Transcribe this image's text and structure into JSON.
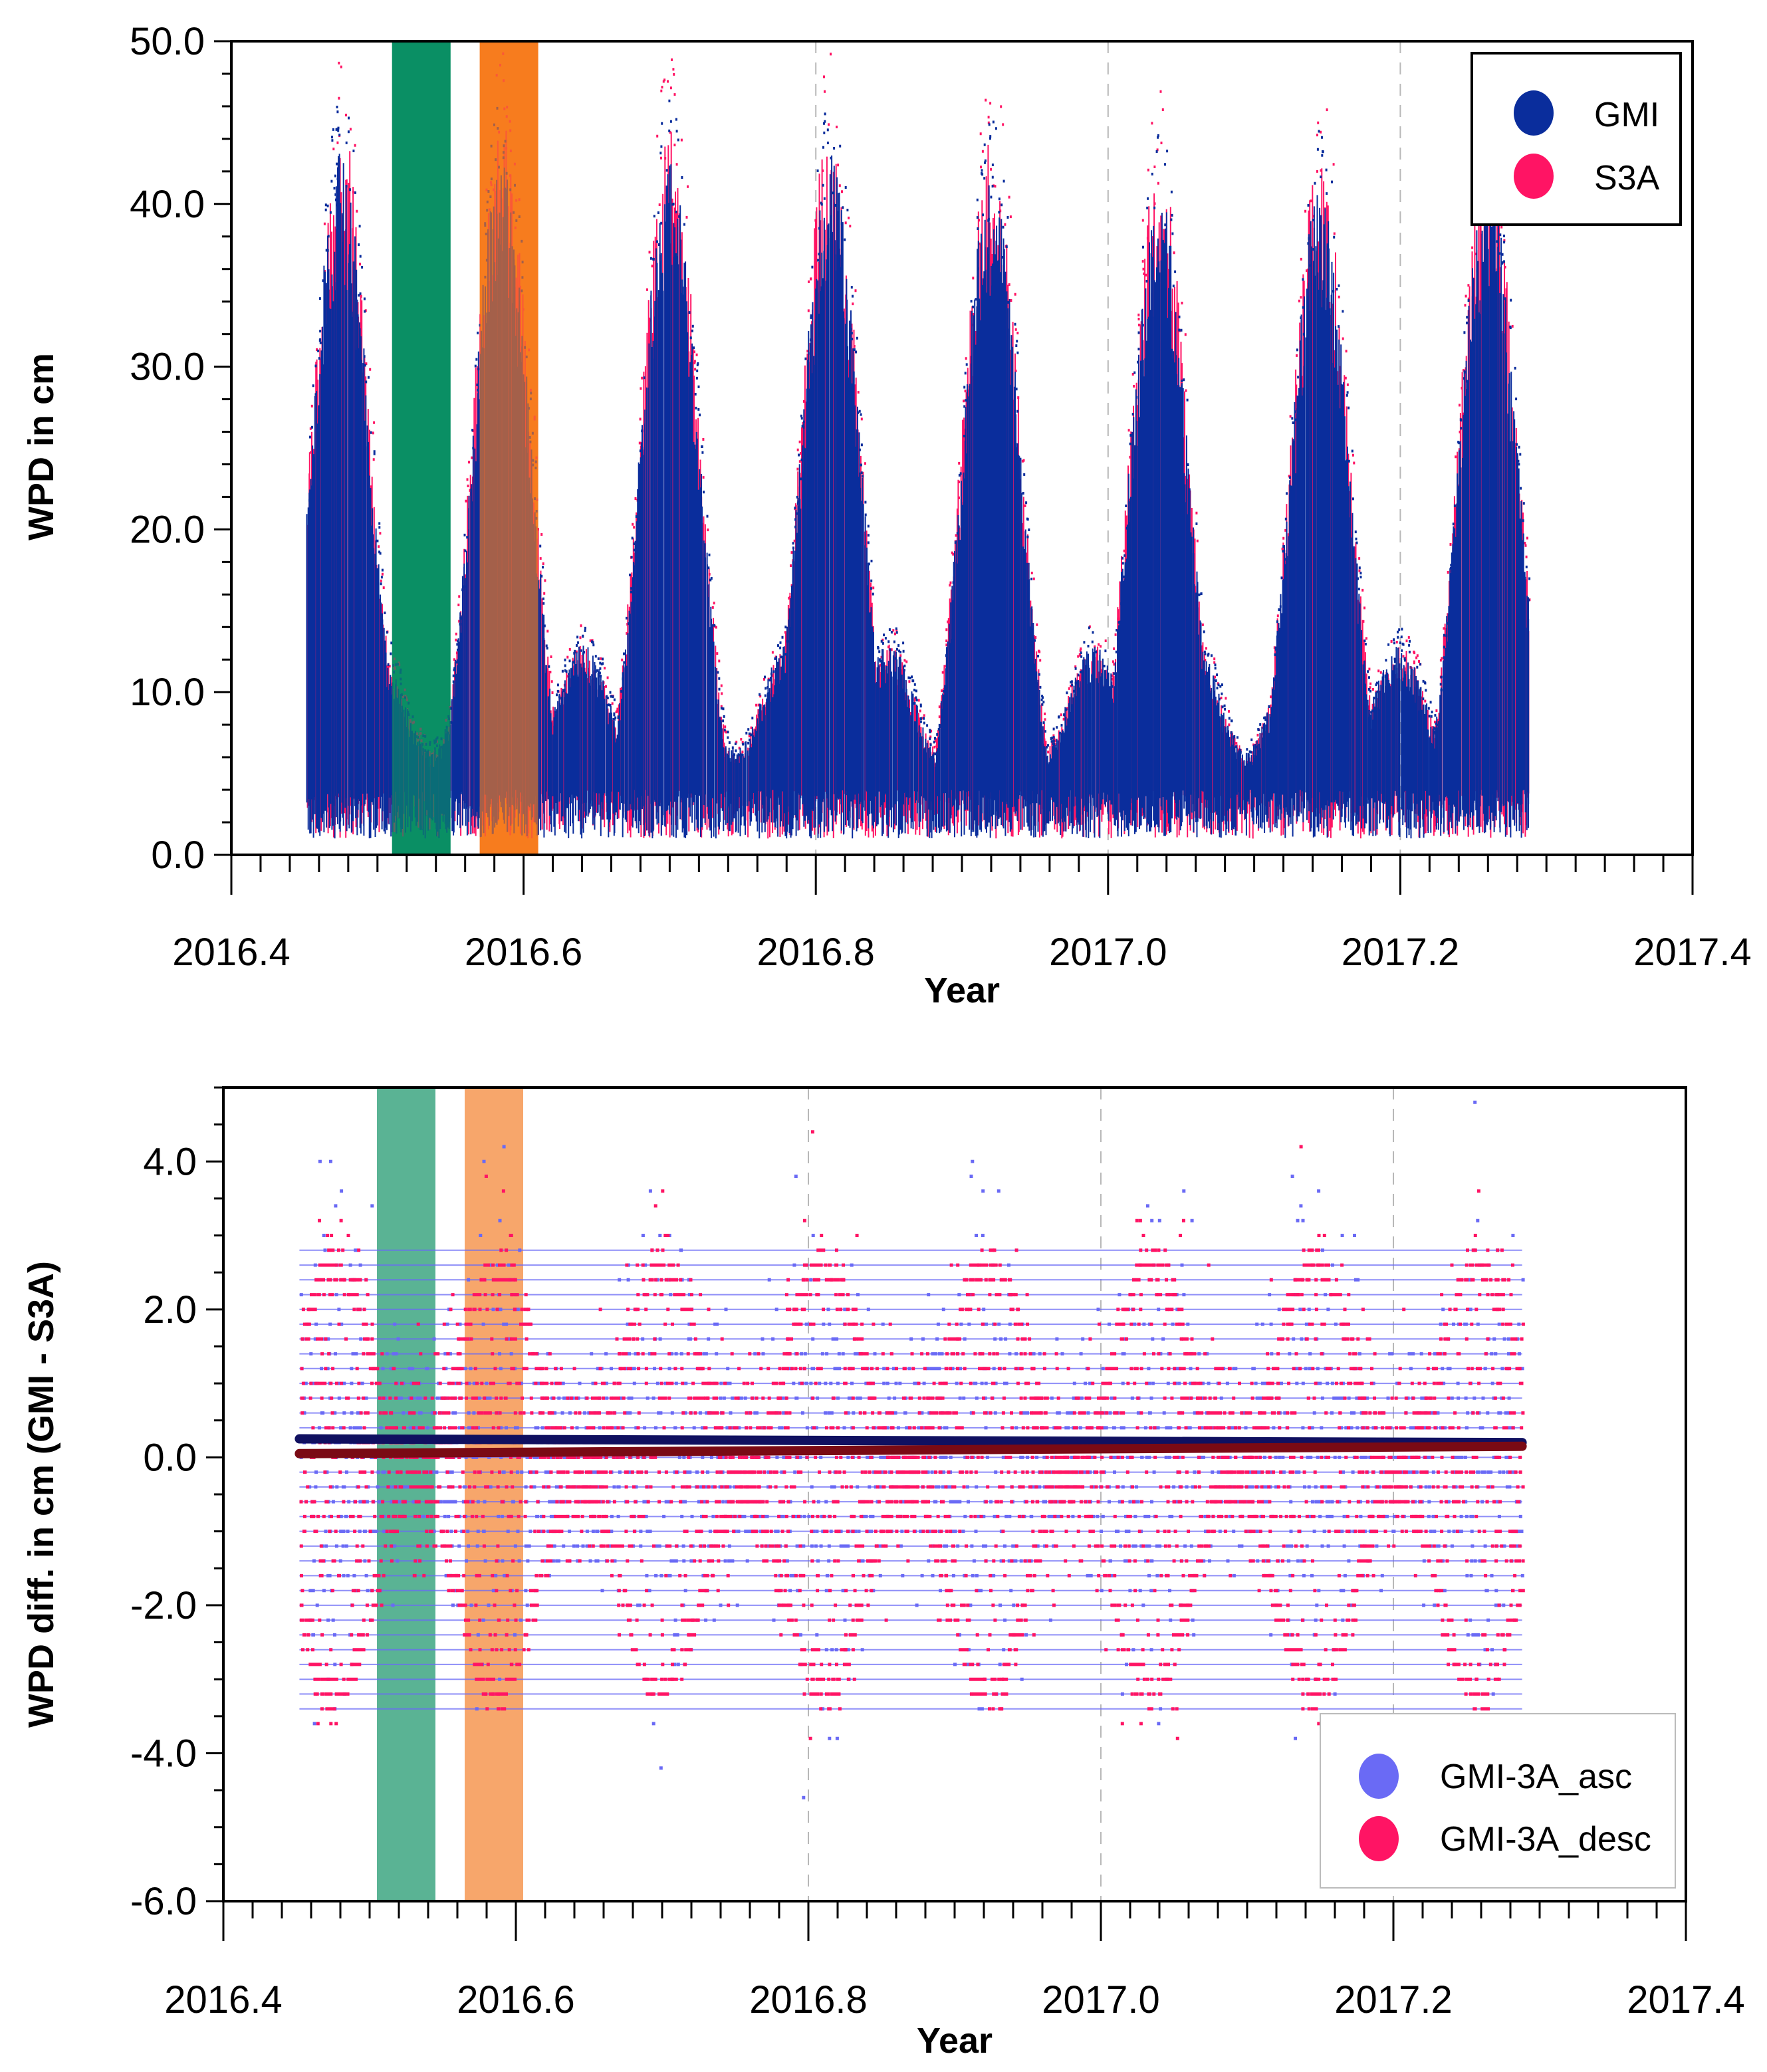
{
  "colors": {
    "gmi": "#0a2d9c",
    "s3a": "#ff1464",
    "asc": "#6a6af5",
    "desc": "#ff1464",
    "band_green": "#0a8f64",
    "band_orange": "#f77d1e",
    "band_green_light": "#5ab394",
    "band_orange_light": "#f7a66b",
    "mean_asc": "#101060",
    "mean_desc": "#7a0a14",
    "grid": "#b8b8b8"
  },
  "chart_data": [
    {
      "type": "scatter",
      "title": "",
      "xlabel": "Year",
      "ylabel": "WPD in cm",
      "xlim": [
        2016.4,
        2017.4
      ],
      "ylim": [
        0.0,
        50.0
      ],
      "x_ticks": [
        "2016.4",
        "2016.6",
        "2016.8",
        "2017.0",
        "2017.2",
        "2017.4"
      ],
      "y_ticks": [
        "0.0",
        "10.0",
        "20.0",
        "30.0",
        "40.0",
        "50.0"
      ],
      "x_range_data": [
        2016.452,
        2017.288
      ],
      "shaded_periods": [
        {
          "color": "green",
          "x": [
            2016.51,
            2016.55
          ]
        },
        {
          "color": "orange",
          "x": [
            2016.57,
            2016.61
          ]
        }
      ],
      "series": [
        {
          "name": "GMI",
          "color_key": "gmi",
          "peaks": [
            {
              "x": 2016.475,
              "y": 40
            },
            {
              "x": 2016.585,
              "y": 40
            },
            {
              "x": 2016.7,
              "y": 40
            },
            {
              "x": 2016.81,
              "y": 40
            },
            {
              "x": 2016.92,
              "y": 39
            },
            {
              "x": 2017.035,
              "y": 38
            },
            {
              "x": 2017.145,
              "y": 38
            },
            {
              "x": 2017.26,
              "y": 39
            }
          ],
          "min": 2,
          "max_spike": 46
        },
        {
          "name": "S3A",
          "color_key": "s3a",
          "peaks": [
            {
              "x": 2016.475,
              "y": 42
            },
            {
              "x": 2016.585,
              "y": 42
            },
            {
              "x": 2016.7,
              "y": 42
            },
            {
              "x": 2016.81,
              "y": 42
            },
            {
              "x": 2016.92,
              "y": 40
            },
            {
              "x": 2017.035,
              "y": 40
            },
            {
              "x": 2017.145,
              "y": 40
            },
            {
              "x": 2017.26,
              "y": 41
            }
          ],
          "min": 2,
          "max_spike": 48
        }
      ],
      "legend": {
        "position": "top-right",
        "entries": [
          "GMI",
          "S3A"
        ]
      }
    },
    {
      "type": "scatter",
      "title": "",
      "xlabel": "Year",
      "ylabel": "WPD diff. in cm (GMI - S3A)",
      "xlim": [
        2016.4,
        2017.4
      ],
      "ylim": [
        -6.0,
        5.0
      ],
      "x_ticks": [
        "2016.4",
        "2016.6",
        "2016.8",
        "2017.0",
        "2017.2",
        "2017.4"
      ],
      "y_ticks": [
        "-6.0",
        "-4.0",
        "-2.0",
        "0.0",
        "2.0",
        "4.0"
      ],
      "x_range_data": [
        2016.452,
        2017.288
      ],
      "shaded_periods": [
        {
          "color": "green",
          "x": [
            2016.505,
            2016.545
          ]
        },
        {
          "color": "orange",
          "x": [
            2016.565,
            2016.605
          ]
        }
      ],
      "mean_lines": [
        {
          "name": "mean asc",
          "color_key": "mean_asc",
          "y_start": 0.25,
          "y_end": 0.2
        },
        {
          "name": "mean desc",
          "color_key": "mean_desc",
          "y_start": 0.05,
          "y_end": 0.15
        }
      ],
      "series": [
        {
          "name": "GMI-3A_asc",
          "color_key": "asc"
        },
        {
          "name": "GMI-3A_desc",
          "color_key": "desc"
        }
      ],
      "legend": {
        "position": "bottom-right",
        "entries": [
          "GMI-3A_asc",
          "GMI-3A_desc"
        ]
      }
    }
  ]
}
